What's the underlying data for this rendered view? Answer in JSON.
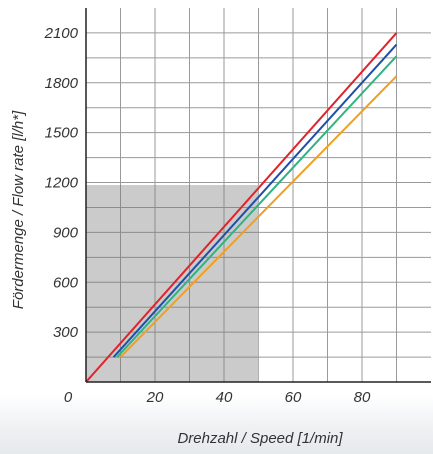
{
  "chart_data": {
    "type": "line",
    "xlabel": "Drehzahl / Speed [1/min]",
    "ylabel": "Fördermenge / Flow rate [l/h*]",
    "xlim": [
      0,
      100
    ],
    "ylim": [
      0,
      2250
    ],
    "x_ticks": [
      20,
      40,
      60,
      80
    ],
    "y_ticks": [
      300,
      600,
      900,
      1200,
      1500,
      1800,
      2100
    ],
    "origin_label": "0",
    "grid": true,
    "shaded_region": {
      "x": [
        0,
        50
      ],
      "y": [
        0,
        1185
      ],
      "color": "#c8c8c8"
    },
    "series": [
      {
        "color": "#e0222a",
        "x": [
          0,
          90
        ],
        "y": [
          0,
          2100
        ]
      },
      {
        "color": "#1f4fa8",
        "x": [
          8,
          90
        ],
        "y": [
          150,
          2030
        ]
      },
      {
        "color": "#2fb380",
        "x": [
          9,
          90
        ],
        "y": [
          150,
          1960
        ]
      },
      {
        "color": "#f0a020",
        "x": [
          10,
          90
        ],
        "y": [
          150,
          1840
        ]
      }
    ]
  }
}
